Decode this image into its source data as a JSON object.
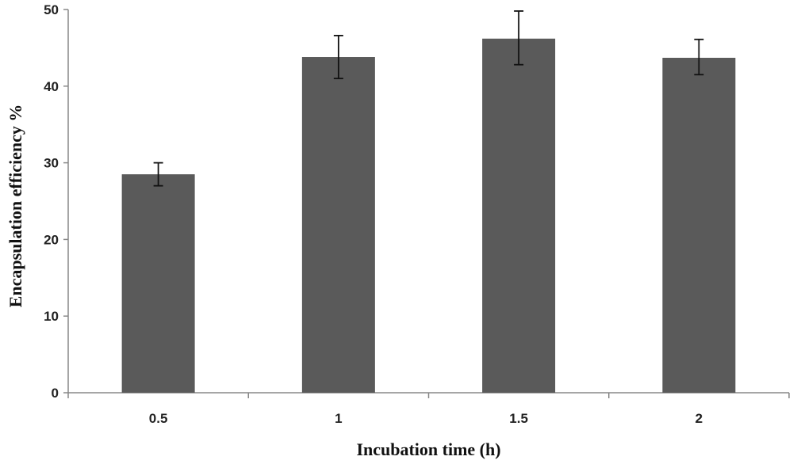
{
  "chart_data": {
    "type": "bar",
    "title": "",
    "xlabel": "Incubation time (h)",
    "ylabel": "Encapsulation efficiency %",
    "categories": [
      "0.5",
      "1",
      "1.5",
      "2"
    ],
    "series": [
      {
        "values": [
          28.5,
          43.8,
          46.2,
          43.7
        ],
        "error_low": [
          27.0,
          41.0,
          42.8,
          41.5
        ],
        "error_high": [
          30.0,
          46.6,
          49.8,
          46.1
        ]
      }
    ],
    "ylim": [
      0,
      50
    ],
    "yticks": [
      "0",
      "10",
      "20",
      "30",
      "40",
      "50"
    ],
    "grid": false,
    "legend": "none",
    "colors": {
      "bar": "#5a5a5a",
      "axis": "#888888",
      "error_bar": "#111111"
    }
  }
}
